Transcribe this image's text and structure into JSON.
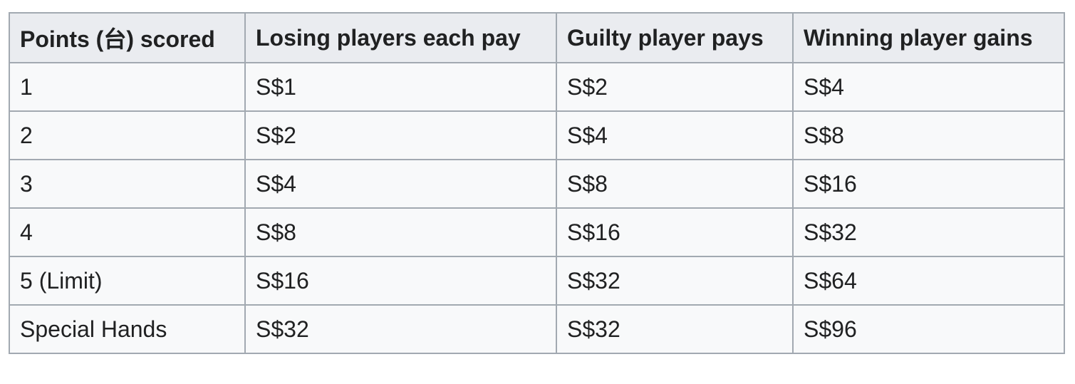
{
  "table": {
    "headers": [
      "Points (台) scored",
      "Losing players each pay",
      "Guilty player pays",
      "Winning player gains"
    ],
    "rows": [
      [
        "1",
        "S$1",
        "S$2",
        "S$4"
      ],
      [
        "2",
        "S$2",
        "S$4",
        "S$8"
      ],
      [
        "3",
        "S$4",
        "S$8",
        "S$16"
      ],
      [
        "4",
        "S$8",
        "S$16",
        "S$32"
      ],
      [
        "5 (Limit)",
        "S$16",
        "S$32",
        "S$64"
      ],
      [
        "Special Hands",
        "S$32",
        "S$32",
        "S$96"
      ]
    ]
  }
}
